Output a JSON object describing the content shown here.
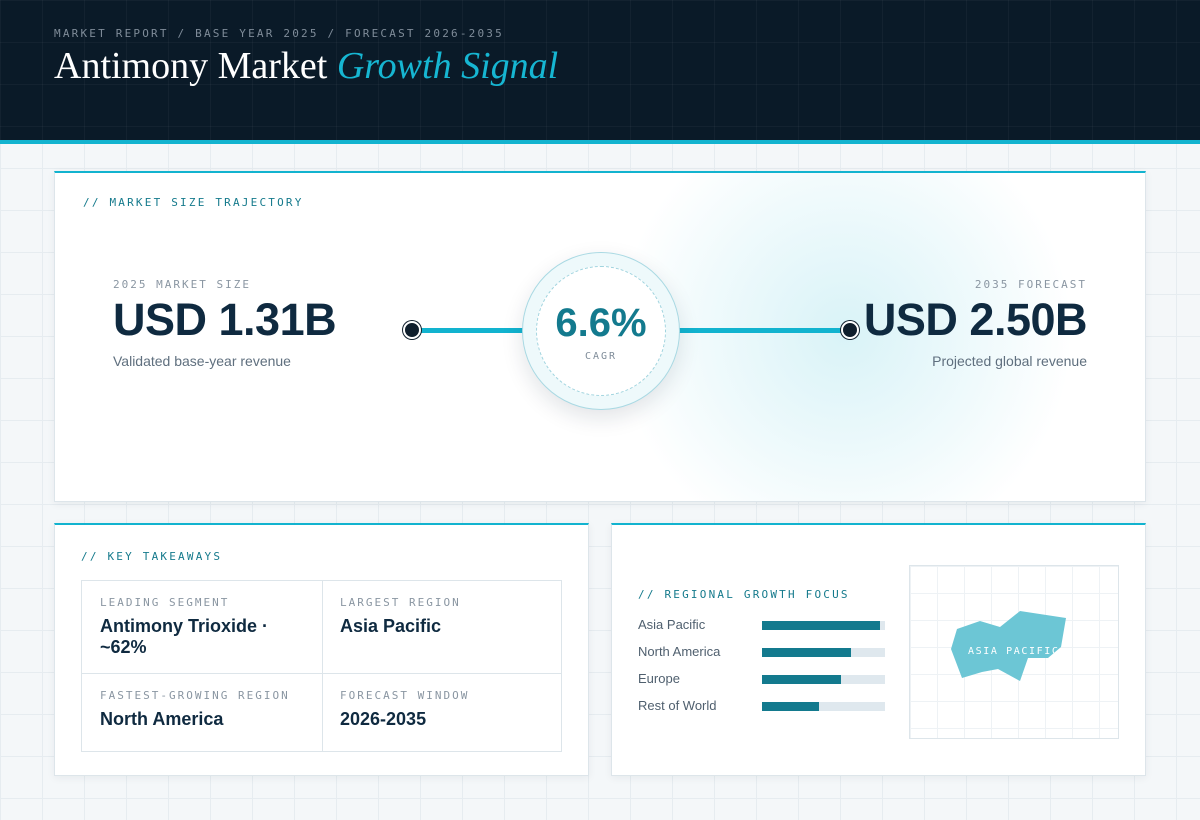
{
  "header": {
    "eyebrow": "MARKET REPORT / BASE YEAR 2025 / FORECAST 2026-2035",
    "title_main": "Antimony Market ",
    "title_accent": "Growth Signal"
  },
  "trajectory": {
    "section_label": "// MARKET SIZE TRAJECTORY",
    "start": {
      "label": "2025 MARKET SIZE",
      "value": "USD 1.31B",
      "caption": "Validated base-year revenue"
    },
    "end": {
      "label": "2035 FORECAST",
      "value": "USD 2.50B",
      "caption": "Projected global revenue"
    },
    "cagr": {
      "value": "6.6%",
      "label": "CAGR"
    }
  },
  "takeaways": {
    "section_label": "// KEY TAKEAWAYS",
    "items": [
      {
        "key": "LEADING SEGMENT",
        "value": "Antimony Trioxide · ~62%"
      },
      {
        "key": "LARGEST REGION",
        "value": "Asia Pacific"
      },
      {
        "key": "FASTEST-GROWING REGION",
        "value": "North America"
      },
      {
        "key": "FORECAST WINDOW",
        "value": "2026-2035"
      }
    ]
  },
  "regional": {
    "section_label": "// REGIONAL GROWTH FOCUS",
    "regions": [
      {
        "name": "Asia Pacific",
        "share": 0.96
      },
      {
        "name": "North America",
        "share": 0.72
      },
      {
        "name": "Europe",
        "share": 0.64
      },
      {
        "name": "Rest of World",
        "share": 0.46
      }
    ],
    "map_label": "ASIA PACIFIC",
    "colors": {
      "bar": "#137a8e",
      "track": "#dfe8ee",
      "map_region": "#6cc6d5"
    }
  }
}
